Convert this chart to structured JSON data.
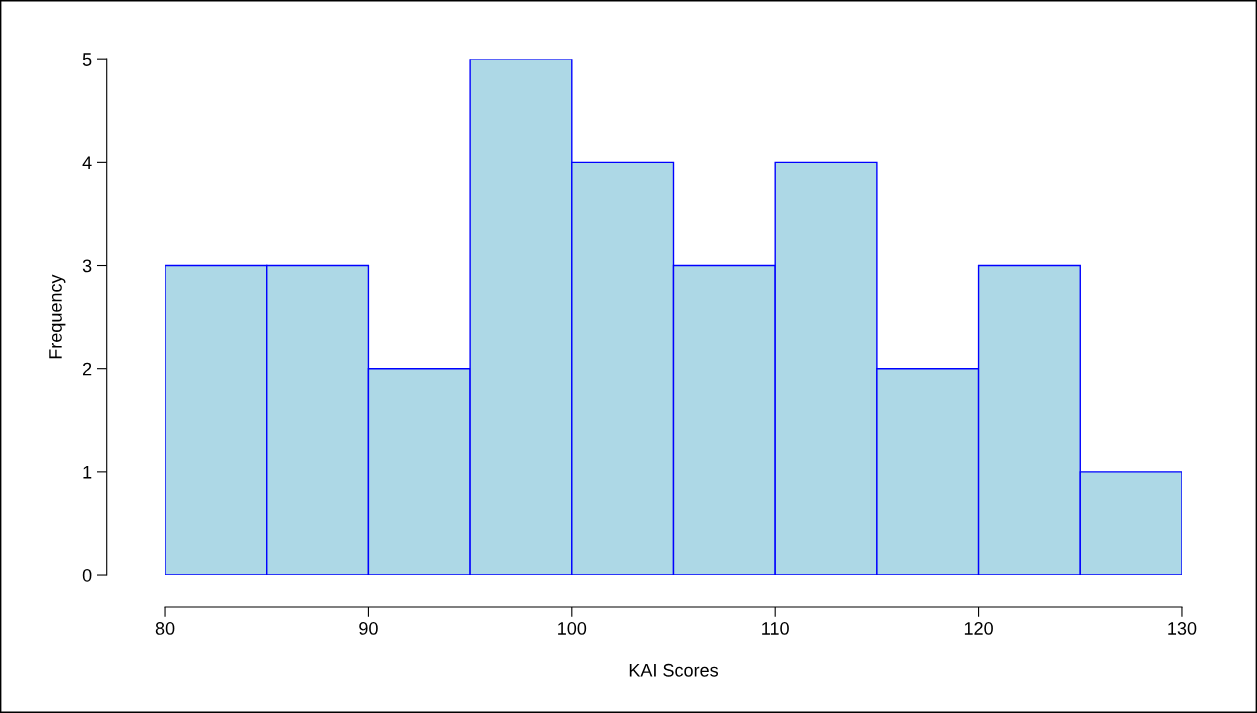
{
  "chart_data": {
    "type": "histogram",
    "xlabel": "KAI Scores",
    "ylabel": "Frequency",
    "bins": [
      80,
      85,
      90,
      95,
      100,
      105,
      110,
      115,
      120,
      125,
      130
    ],
    "values": [
      3,
      3,
      2,
      5,
      4,
      3,
      4,
      2,
      3,
      1
    ],
    "color": "#add8e6",
    "xlim": [
      80,
      130
    ],
    "xticks": [
      80,
      90,
      100,
      110,
      120,
      130
    ],
    "ylim": [
      0,
      5
    ],
    "yticks": [
      0,
      1,
      2,
      3,
      4,
      5
    ],
    "grid": false
  }
}
